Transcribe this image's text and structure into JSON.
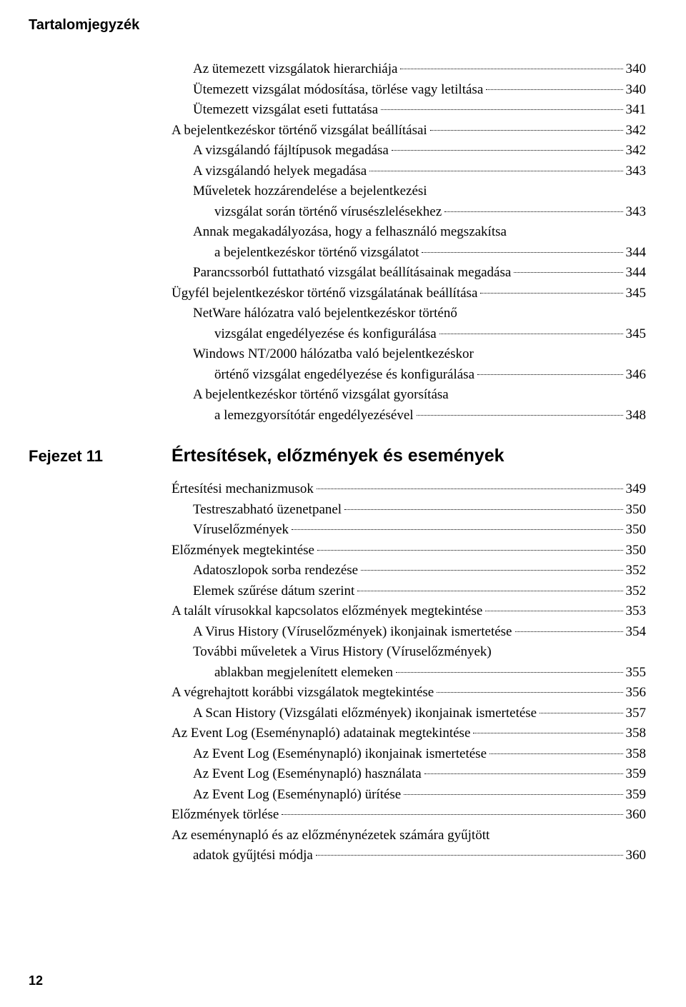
{
  "header": "Tartalomjegyzék",
  "pageNumber": "12",
  "chapter": {
    "label": "Fejezet 11",
    "title": "Értesítések, előzmények és események"
  },
  "section1": [
    {
      "indent": 1,
      "text": "Az ütemezett vizsgálatok hierarchiája",
      "page": "340"
    },
    {
      "indent": 1,
      "text": "Ütemezett vizsgálat módosítása, törlése vagy letiltása",
      "page": "340"
    },
    {
      "indent": 1,
      "text": "Ütemezett vizsgálat eseti futtatása",
      "page": "341"
    },
    {
      "indent": 0,
      "text": "A bejelentkezéskor történő vizsgálat beállításai",
      "page": "342"
    },
    {
      "indent": 1,
      "text": "A vizsgálandó fájltípusok megadása",
      "page": "342"
    },
    {
      "indent": 1,
      "text": "A vizsgálandó helyek megadása",
      "page": "343"
    },
    {
      "indent": 1,
      "wrap": true,
      "lines": [
        "Műveletek hozzárendelése a bejelentkezési",
        "vizsgálat során történő vírusészlelésekhez"
      ],
      "page": "343"
    },
    {
      "indent": 1,
      "wrap": true,
      "lines": [
        "Annak megakadályozása, hogy a felhasználó megszakítsa",
        "a bejelentkezéskor történő vizsgálatot"
      ],
      "page": "344"
    },
    {
      "indent": 1,
      "text": "Parancssorból futtatható vizsgálat beállításainak megadása",
      "page": "344"
    },
    {
      "indent": 0,
      "text": "Ügyfél bejelentkezéskor történő vizsgálatának beállítása",
      "page": "345"
    },
    {
      "indent": 1,
      "wrap": true,
      "lines": [
        "NetWare hálózatra való bejelentkezéskor történő",
        "vizsgálat engedélyezése és konfigurálása"
      ],
      "page": "345"
    },
    {
      "indent": 1,
      "wrap": true,
      "lines": [
        "Windows NT/2000 hálózatba való bejelentkezéskor",
        "örténő vizsgálat engedélyezése és konfigurálása"
      ],
      "page": "346"
    },
    {
      "indent": 1,
      "wrap": true,
      "lines": [
        "A bejelentkezéskor történő vizsgálat gyorsítása",
        "a lemezgyorsítótár engedélyezésével"
      ],
      "page": "348"
    }
  ],
  "section2": [
    {
      "indent": 0,
      "text": "Értesítési mechanizmusok",
      "page": "349"
    },
    {
      "indent": 1,
      "text": "Testreszabható üzenetpanel",
      "page": "350"
    },
    {
      "indent": 1,
      "text": "Víruselőzmények",
      "page": "350"
    },
    {
      "indent": 0,
      "text": "Előzmények megtekintése",
      "page": "350"
    },
    {
      "indent": 1,
      "text": "Adatoszlopok sorba rendezése",
      "page": "352"
    },
    {
      "indent": 1,
      "text": "Elemek szűrése dátum szerint",
      "page": "352"
    },
    {
      "indent": 0,
      "text": "A talált vírusokkal kapcsolatos előzmények megtekintése",
      "page": "353"
    },
    {
      "indent": 1,
      "text": "A Virus History (Víruselőzmények) ikonjainak ismertetése",
      "page": "354"
    },
    {
      "indent": 1,
      "wrap": true,
      "lines": [
        "További műveletek a Virus History (Víruselőzmények)",
        "ablakban megjelenített elemeken"
      ],
      "page": "355"
    },
    {
      "indent": 0,
      "text": "A végrehajtott korábbi vizsgálatok megtekintése",
      "page": "356"
    },
    {
      "indent": 1,
      "text": "A Scan History (Vizsgálati előzmények) ikonjainak ismertetése",
      "page": "357"
    },
    {
      "indent": 0,
      "text": "Az Event Log (Eseménynapló) adatainak megtekintése",
      "page": "358"
    },
    {
      "indent": 1,
      "text": "Az Event Log (Eseménynapló) ikonjainak ismertetése",
      "page": "358"
    },
    {
      "indent": 1,
      "text": "Az Event Log (Eseménynapló) használata",
      "page": "359"
    },
    {
      "indent": 1,
      "text": "Az Event Log (Eseménynapló) ürítése",
      "page": "359"
    },
    {
      "indent": 0,
      "text": "Előzmények törlése",
      "page": "360"
    },
    {
      "indent": 0,
      "wrap": true,
      "lines": [
        "Az eseménynapló és az előzménynézetek számára gyűjtött",
        "adatok gyűjtési módja"
      ],
      "page": "360"
    }
  ]
}
